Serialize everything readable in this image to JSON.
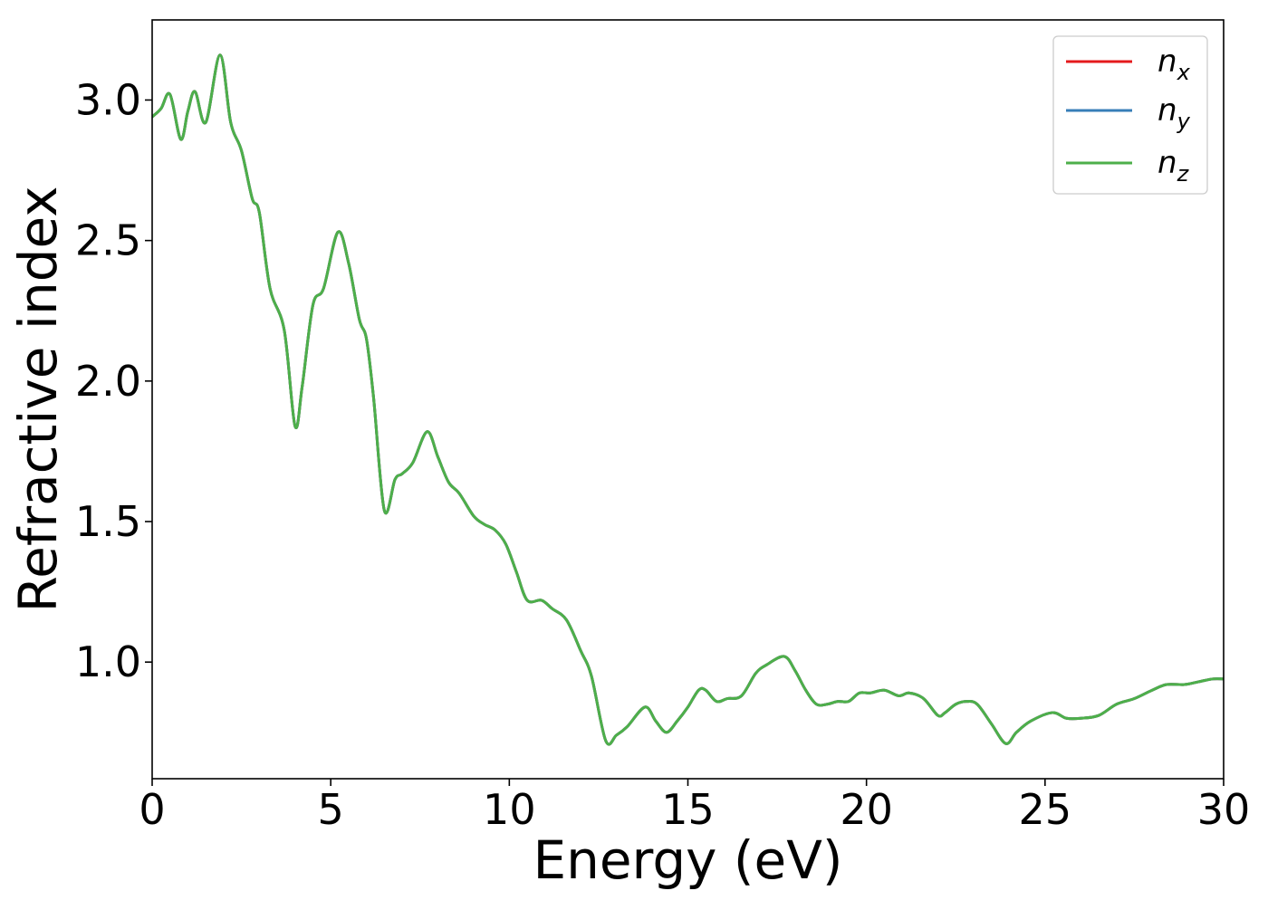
{
  "chart_data": {
    "type": "line",
    "xlabel": "Energy (eV)",
    "ylabel": "Refractive index",
    "xlim": [
      0,
      30
    ],
    "ylim": [
      0.585,
      3.285
    ],
    "xticks": [
      0,
      5,
      10,
      15,
      20,
      25,
      30
    ],
    "xtick_labels": [
      "0",
      "5",
      "10",
      "15",
      "20",
      "25",
      "30"
    ],
    "yticks": [
      1.0,
      1.5,
      2.0,
      2.5,
      3.0
    ],
    "ytick_labels": [
      "1.0",
      "1.5",
      "2.0",
      "2.5",
      "3.0"
    ],
    "grid": false,
    "legend_position": "top-right",
    "series": [
      {
        "name": "n",
        "subscript": "x",
        "color": "#e41a1c"
      },
      {
        "name": "n",
        "subscript": "y",
        "color": "#377eb8"
      },
      {
        "name": "n",
        "subscript": "z",
        "color": "#4daf4a"
      }
    ],
    "x": [
      0,
      0.25,
      0.5,
      0.8,
      1.0,
      1.2,
      1.5,
      1.9,
      2.2,
      2.5,
      2.8,
      3.0,
      3.3,
      3.7,
      4.0,
      4.2,
      4.5,
      4.8,
      5.2,
      5.5,
      5.8,
      6.0,
      6.2,
      6.5,
      6.8,
      7.0,
      7.3,
      7.7,
      8.0,
      8.3,
      8.6,
      9.0,
      9.3,
      9.6,
      9.9,
      10.2,
      10.5,
      10.9,
      11.2,
      11.6,
      12.0,
      12.3,
      12.7,
      13.0,
      13.3,
      13.8,
      14.1,
      14.4,
      14.7,
      15.0,
      15.3,
      15.5,
      15.8,
      16.1,
      16.5,
      16.9,
      17.2,
      17.7,
      18.0,
      18.3,
      18.6,
      18.9,
      19.2,
      19.5,
      19.8,
      20.1,
      20.5,
      20.9,
      21.2,
      21.6,
      22.0,
      22.2,
      22.5,
      22.8,
      23.1,
      23.5,
      23.9,
      24.2,
      24.6,
      25.2,
      25.6,
      26.0,
      26.5,
      27.0,
      27.5,
      28.0,
      28.4,
      28.9,
      29.3,
      29.7,
      30.0
    ],
    "values": [
      2.94,
      2.97,
      3.02,
      2.86,
      2.96,
      3.03,
      2.92,
      3.16,
      2.92,
      2.82,
      2.65,
      2.6,
      2.33,
      2.18,
      1.84,
      1.98,
      2.27,
      2.33,
      2.53,
      2.42,
      2.22,
      2.15,
      1.94,
      1.54,
      1.65,
      1.67,
      1.71,
      1.82,
      1.73,
      1.64,
      1.6,
      1.52,
      1.49,
      1.47,
      1.42,
      1.32,
      1.22,
      1.22,
      1.19,
      1.15,
      1.04,
      0.95,
      0.72,
      0.74,
      0.77,
      0.84,
      0.79,
      0.75,
      0.79,
      0.84,
      0.9,
      0.9,
      0.86,
      0.87,
      0.88,
      0.96,
      0.99,
      1.02,
      0.97,
      0.9,
      0.85,
      0.85,
      0.86,
      0.86,
      0.89,
      0.89,
      0.9,
      0.88,
      0.89,
      0.87,
      0.81,
      0.82,
      0.85,
      0.86,
      0.85,
      0.78,
      0.71,
      0.75,
      0.79,
      0.82,
      0.8,
      0.8,
      0.81,
      0.85,
      0.87,
      0.9,
      0.92,
      0.92,
      0.93,
      0.94,
      0.94
    ]
  }
}
